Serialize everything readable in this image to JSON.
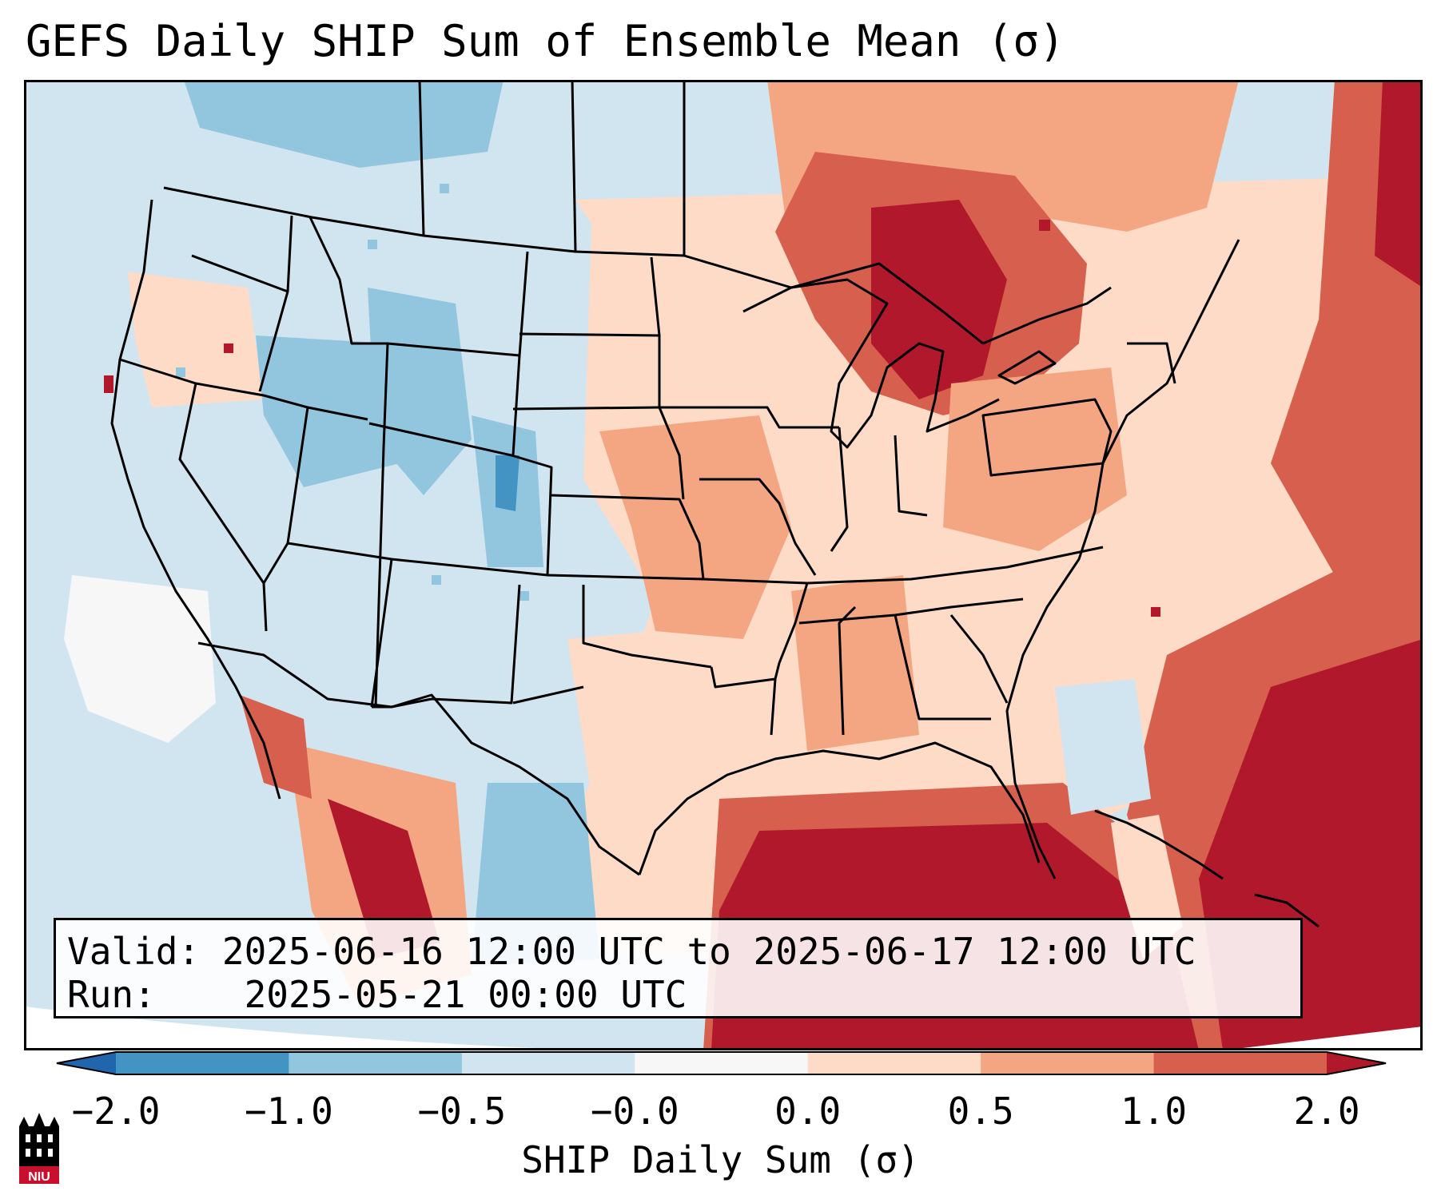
{
  "title": "GEFS Daily SHIP Sum of Ensemble Mean (σ)",
  "info": {
    "valid_label": "Valid:",
    "valid_value": "2025-06-16 12:00 UTC to 2025-06-17 12:00 UTC",
    "run_label": "Run:",
    "run_value": "2025-05-21 00:00 UTC"
  },
  "colorbar": {
    "label": "SHIP Daily Sum (σ)",
    "ticks": [
      "−2.0",
      "−1.0",
      "−0.5",
      "−0.0",
      "0.0",
      "0.5",
      "1.0",
      "2.0"
    ],
    "bins": [
      {
        "range": "<-2.0",
        "color": "#2166ac"
      },
      {
        "range": "-2.0 to -1.0",
        "color": "#4393c3"
      },
      {
        "range": "-1.0 to -0.5",
        "color": "#92c5de"
      },
      {
        "range": "-0.5 to -0.0",
        "color": "#d1e5f0"
      },
      {
        "range": "-0.0 to 0.0",
        "color": "#f7f7f7"
      },
      {
        "range": "0.0 to 0.5",
        "color": "#fddbc7"
      },
      {
        "range": "0.5 to 1.0",
        "color": "#f4a582"
      },
      {
        "range": "1.0 to 2.0",
        "color": "#d6604d"
      },
      {
        "range": ">2.0",
        "color": "#b2182b"
      }
    ]
  },
  "logo": {
    "text": "NIU",
    "icon": "niu-tower-logo-icon",
    "color": "#c8102e"
  }
}
